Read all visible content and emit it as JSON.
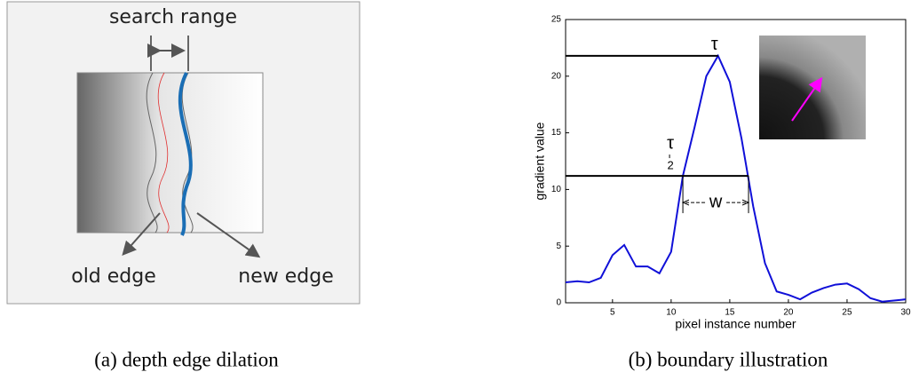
{
  "diagram": {
    "search_range": "search range",
    "old_edge": "old edge",
    "new_edge": "new edge"
  },
  "captions": [
    "(a) depth edge dilation",
    "(b) boundary illustration"
  ],
  "chart_data": {
    "type": "line",
    "xlabel": "pixel instance number",
    "ylabel": "gradient value",
    "x": [
      1,
      2,
      3,
      4,
      5,
      6,
      7,
      8,
      9,
      10,
      11,
      12,
      13,
      14,
      15,
      16,
      17,
      18,
      19,
      20,
      21,
      22,
      23,
      24,
      25,
      26,
      27,
      28,
      29,
      30
    ],
    "values": [
      1.8,
      1.9,
      1.8,
      2.2,
      4.2,
      5.1,
      3.2,
      3.2,
      2.6,
      4.5,
      11.2,
      15.5,
      20,
      21.8,
      19.5,
      14.5,
      8.5,
      3.5,
      1.0,
      0.7,
      0.3,
      0.9,
      1.3,
      1.6,
      1.7,
      1.2,
      0.4,
      0.1,
      0.2,
      0.3
    ],
    "color": "#1010d8",
    "xlim": [
      1,
      30
    ],
    "xticks": [
      5,
      10,
      15,
      20,
      25,
      30
    ],
    "ylim": [
      0,
      25
    ],
    "yticks": [
      0,
      5,
      10,
      15,
      20,
      25
    ],
    "levels": [
      {
        "label": "τ",
        "value": 21.8,
        "x_end": 14
      },
      {
        "numerator": "τ",
        "denominator": "2",
        "value": 11.2,
        "x_end": 16.6
      }
    ],
    "width": {
      "label": "w",
      "x": [
        11,
        16.6
      ]
    }
  }
}
